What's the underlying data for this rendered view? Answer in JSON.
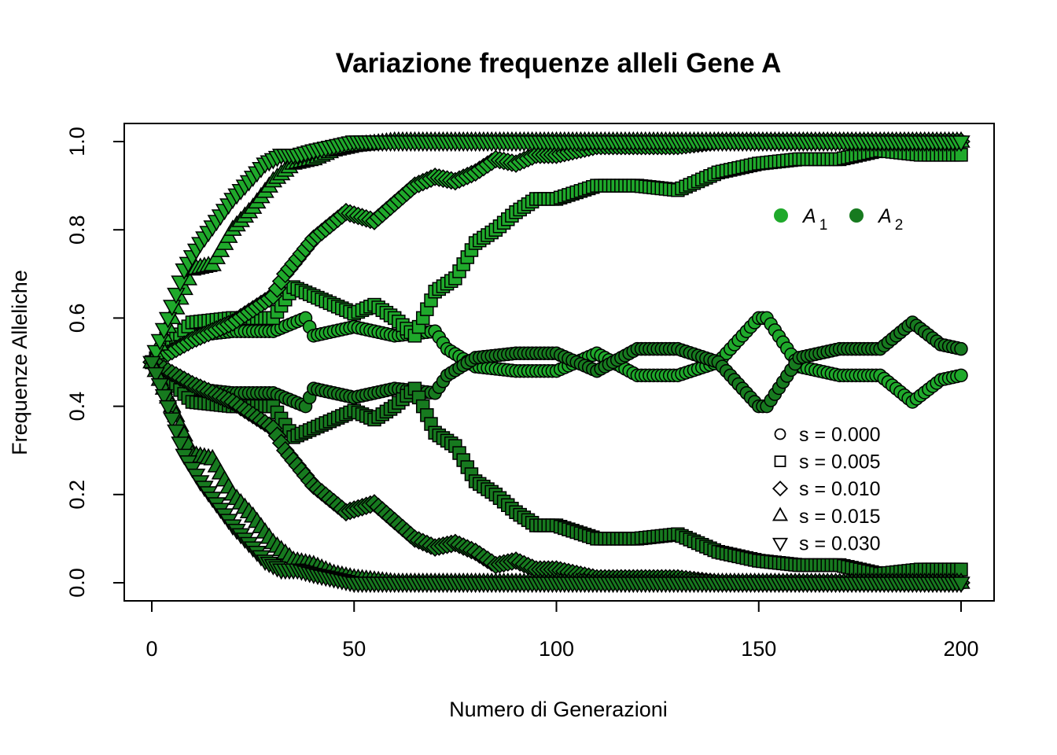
{
  "chart_data": {
    "type": "scatter",
    "title": "Variazione frequenze alleli Gene A",
    "xlabel": "Numero di Generazioni",
    "ylabel": "Frequenze Alleliche",
    "xlim": [
      0,
      200
    ],
    "ylim": [
      0,
      1
    ],
    "xticks": [
      "0",
      "50",
      "100",
      "150",
      "200"
    ],
    "yticks": [
      "0.0",
      "0.2",
      "0.4",
      "0.6",
      "0.8",
      "1.0"
    ],
    "grid": false,
    "colors": {
      "A1": "#1fa92b",
      "A2": "#177a1f",
      "stroke": "#000000"
    },
    "legend_alleles": {
      "placement": "right",
      "entries": [
        {
          "label": "A",
          "subscript": "1",
          "color": "#1fa92b"
        },
        {
          "label": "A",
          "subscript": "2",
          "color": "#177a1f"
        }
      ]
    },
    "legend_selection": {
      "placement": "bottom-right",
      "entries": [
        {
          "label": "s = 0.000",
          "shape": "circle"
        },
        {
          "label": "s = 0.005",
          "shape": "square"
        },
        {
          "label": "s = 0.010",
          "shape": "diamond"
        },
        {
          "label": "s = 0.015",
          "shape": "triangle-up"
        },
        {
          "label": "s = 0.030",
          "shape": "triangle-down"
        }
      ]
    },
    "series": [
      {
        "name": "A1 s = 0.000",
        "shape": "circle",
        "color": "#1fa92b",
        "x": [
          0,
          10,
          20,
          30,
          38,
          40,
          50,
          60,
          70,
          73,
          80,
          90,
          100,
          110,
          120,
          130,
          140,
          145,
          150,
          152,
          160,
          170,
          180,
          188,
          195,
          200
        ],
        "y": [
          0.5,
          0.56,
          0.57,
          0.57,
          0.6,
          0.56,
          0.58,
          0.56,
          0.57,
          0.53,
          0.49,
          0.48,
          0.48,
          0.52,
          0.47,
          0.47,
          0.5,
          0.55,
          0.6,
          0.6,
          0.49,
          0.47,
          0.47,
          0.41,
          0.46,
          0.47
        ]
      },
      {
        "name": "A2 s = 0.000",
        "shape": "circle",
        "color": "#177a1f",
        "x": [
          0,
          10,
          20,
          30,
          38,
          40,
          50,
          60,
          70,
          73,
          80,
          90,
          100,
          110,
          120,
          130,
          140,
          145,
          150,
          152,
          160,
          170,
          180,
          188,
          195,
          200
        ],
        "y": [
          0.5,
          0.44,
          0.43,
          0.43,
          0.4,
          0.44,
          0.42,
          0.44,
          0.43,
          0.47,
          0.51,
          0.52,
          0.52,
          0.48,
          0.53,
          0.53,
          0.5,
          0.45,
          0.4,
          0.4,
          0.51,
          0.53,
          0.53,
          0.59,
          0.54,
          0.53
        ]
      },
      {
        "name": "A1 s = 0.005",
        "shape": "square",
        "color": "#1fa92b",
        "x": [
          0,
          10,
          20,
          30,
          35,
          40,
          50,
          55,
          60,
          65,
          70,
          75,
          80,
          85,
          90,
          95,
          100,
          110,
          120,
          130,
          140,
          150,
          160,
          170,
          180,
          190,
          200
        ],
        "y": [
          0.5,
          0.59,
          0.6,
          0.6,
          0.67,
          0.65,
          0.61,
          0.63,
          0.6,
          0.56,
          0.66,
          0.69,
          0.77,
          0.8,
          0.84,
          0.87,
          0.87,
          0.9,
          0.9,
          0.89,
          0.93,
          0.95,
          0.96,
          0.96,
          0.98,
          0.97,
          0.97
        ]
      },
      {
        "name": "A2 s = 0.005",
        "shape": "square",
        "color": "#177a1f",
        "x": [
          0,
          10,
          20,
          30,
          35,
          40,
          50,
          55,
          60,
          65,
          70,
          75,
          80,
          85,
          90,
          95,
          100,
          110,
          120,
          130,
          140,
          150,
          160,
          170,
          180,
          190,
          200
        ],
        "y": [
          0.5,
          0.41,
          0.4,
          0.4,
          0.33,
          0.35,
          0.39,
          0.37,
          0.4,
          0.44,
          0.34,
          0.31,
          0.23,
          0.2,
          0.16,
          0.13,
          0.13,
          0.1,
          0.1,
          0.11,
          0.07,
          0.05,
          0.04,
          0.04,
          0.02,
          0.03,
          0.03
        ]
      },
      {
        "name": "A1 s = 0.010",
        "shape": "diamond",
        "color": "#1fa92b",
        "x": [
          0,
          10,
          20,
          30,
          33,
          40,
          48,
          55,
          60,
          65,
          70,
          75,
          80,
          85,
          90,
          95,
          100,
          110,
          120,
          130,
          140,
          150,
          160,
          170,
          180,
          190,
          200
        ],
        "y": [
          0.5,
          0.55,
          0.59,
          0.65,
          0.7,
          0.78,
          0.84,
          0.82,
          0.86,
          0.9,
          0.92,
          0.91,
          0.93,
          0.96,
          0.95,
          0.97,
          0.97,
          0.99,
          0.99,
          0.99,
          1.0,
          1.0,
          1.0,
          1.0,
          1.0,
          1.0,
          1.0
        ]
      },
      {
        "name": "A2 s = 0.010",
        "shape": "diamond",
        "color": "#177a1f",
        "x": [
          0,
          10,
          20,
          30,
          33,
          40,
          48,
          55,
          60,
          65,
          70,
          75,
          80,
          85,
          90,
          95,
          100,
          110,
          120,
          130,
          140,
          150,
          160,
          170,
          180,
          190,
          200
        ],
        "y": [
          0.5,
          0.45,
          0.41,
          0.35,
          0.3,
          0.22,
          0.16,
          0.18,
          0.14,
          0.1,
          0.08,
          0.09,
          0.07,
          0.04,
          0.05,
          0.03,
          0.03,
          0.01,
          0.01,
          0.01,
          0.0,
          0.0,
          0.0,
          0.0,
          0.0,
          0.0,
          0.0
        ]
      },
      {
        "name": "A1 s = 0.015",
        "shape": "triangle-up",
        "color": "#1fa92b",
        "x": [
          0,
          5,
          10,
          15,
          20,
          25,
          30,
          35,
          40,
          45,
          50,
          60,
          70,
          80,
          90,
          100,
          110,
          120,
          130,
          140,
          150,
          160,
          170,
          180,
          190,
          200
        ],
        "y": [
          0.5,
          0.6,
          0.71,
          0.72,
          0.8,
          0.85,
          0.91,
          0.95,
          0.96,
          0.98,
          0.99,
          1.0,
          1.0,
          1.0,
          1.0,
          1.0,
          1.0,
          1.0,
          1.0,
          1.0,
          1.0,
          1.0,
          1.0,
          1.0,
          1.0,
          1.0
        ]
      },
      {
        "name": "A2 s = 0.015",
        "shape": "triangle-up",
        "color": "#177a1f",
        "x": [
          0,
          5,
          10,
          15,
          20,
          25,
          30,
          35,
          40,
          45,
          50,
          60,
          70,
          80,
          90,
          100,
          110,
          120,
          130,
          140,
          150,
          160,
          170,
          180,
          190,
          200
        ],
        "y": [
          0.5,
          0.4,
          0.29,
          0.28,
          0.2,
          0.15,
          0.09,
          0.05,
          0.04,
          0.02,
          0.01,
          0.0,
          0.0,
          0.0,
          0.0,
          0.0,
          0.0,
          0.0,
          0.0,
          0.0,
          0.0,
          0.0,
          0.0,
          0.0,
          0.0,
          0.0
        ]
      },
      {
        "name": "A1 s = 0.030",
        "shape": "triangle-down",
        "color": "#1fa92b",
        "x": [
          0,
          4,
          8,
          12,
          16,
          20,
          24,
          28,
          32,
          36,
          40,
          45,
          50,
          60,
          70,
          80,
          90,
          100,
          110,
          120,
          130,
          140,
          150,
          160,
          170,
          180,
          190,
          200
        ],
        "y": [
          0.5,
          0.6,
          0.71,
          0.77,
          0.82,
          0.87,
          0.91,
          0.95,
          0.97,
          0.97,
          0.98,
          0.99,
          1.0,
          1.0,
          1.0,
          1.0,
          1.0,
          1.0,
          1.0,
          1.0,
          1.0,
          1.0,
          1.0,
          1.0,
          1.0,
          1.0,
          1.0,
          1.0
        ]
      },
      {
        "name": "A2 s = 0.030",
        "shape": "triangle-down",
        "color": "#177a1f",
        "x": [
          0,
          4,
          8,
          12,
          16,
          20,
          24,
          28,
          32,
          36,
          40,
          45,
          50,
          60,
          70,
          80,
          90,
          100,
          110,
          120,
          130,
          140,
          150,
          160,
          170,
          180,
          190,
          200
        ],
        "y": [
          0.5,
          0.4,
          0.29,
          0.23,
          0.18,
          0.13,
          0.09,
          0.05,
          0.03,
          0.03,
          0.02,
          0.01,
          0.0,
          0.0,
          0.0,
          0.0,
          0.0,
          0.0,
          0.0,
          0.0,
          0.0,
          0.0,
          0.0,
          0.0,
          0.0,
          0.0,
          0.0,
          0.0
        ]
      }
    ]
  }
}
